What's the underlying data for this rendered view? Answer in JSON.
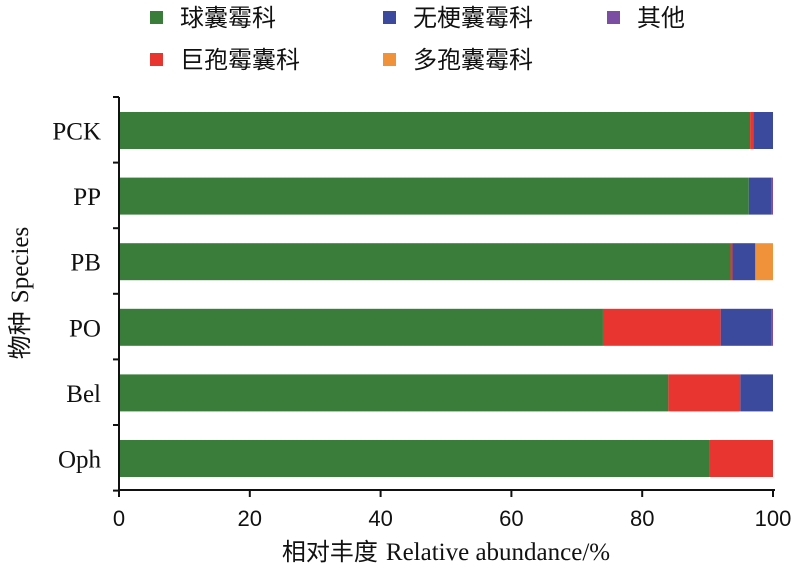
{
  "chart_data": {
    "type": "bar",
    "orientation": "horizontal",
    "stacked": true,
    "categories": [
      "PCK",
      "PP",
      "PB",
      "PO",
      "Bel",
      "Oph"
    ],
    "series": [
      {
        "name": "球囊霉科",
        "color": "#3a7d3a",
        "values": [
          96.5,
          96.3,
          93.5,
          74.0,
          84.0,
          90.3
        ]
      },
      {
        "name": "巨孢霉囊科",
        "color": "#e8352f",
        "values": [
          0.5,
          0.0,
          0.3,
          18.0,
          11.0,
          9.7
        ]
      },
      {
        "name": "无梗囊霉科",
        "color": "#3b4a9c",
        "values": [
          3.0,
          3.5,
          3.5,
          7.8,
          5.0,
          0.0
        ]
      },
      {
        "name": "多孢囊霉科",
        "color": "#f0923a",
        "values": [
          0.0,
          0.0,
          2.7,
          0.0,
          0.0,
          0.0
        ]
      },
      {
        "name": "其他",
        "color": "#7b4ea3",
        "values": [
          0.0,
          0.2,
          0.0,
          0.2,
          0.0,
          0.0
        ]
      }
    ],
    "xlim": [
      0,
      100
    ],
    "xticks": [
      "0",
      "20",
      "40",
      "60",
      "80",
      "100"
    ],
    "xlabel_cn": "相对丰度",
    "xlabel_en": "Relative abundance/%",
    "ylabel_cn": "物种",
    "ylabel_en": "Species",
    "legend_position": "top",
    "grid": false
  }
}
